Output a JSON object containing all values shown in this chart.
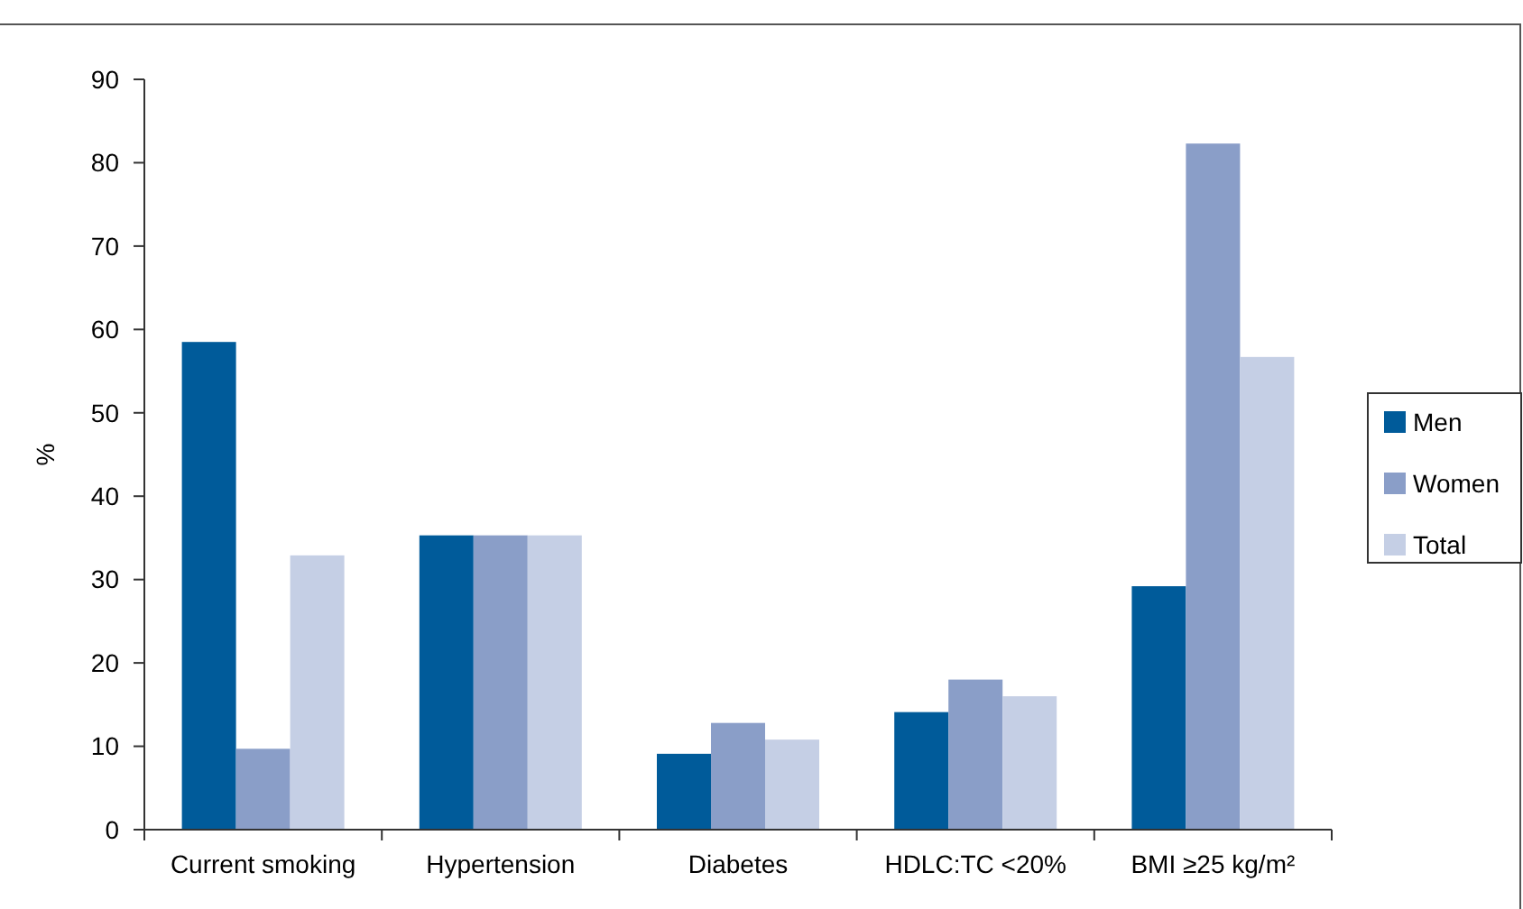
{
  "chart_data": {
    "type": "bar",
    "ylabel": "%",
    "categories": [
      "Current smoking",
      "Hypertension",
      "Diabetes",
      "HDLC:TC <20%",
      "BMI ≥25 kg/m²"
    ],
    "series": [
      {
        "name": "Men",
        "color": "#005b9a",
        "values": [
          58.5,
          35.3,
          9.1,
          14.1,
          29.2
        ]
      },
      {
        "name": "Women",
        "color": "#8a9ec8",
        "values": [
          9.7,
          35.3,
          12.8,
          18.0,
          82.3
        ]
      },
      {
        "name": "Total",
        "color": "#c5cfe5",
        "values": [
          32.9,
          35.3,
          10.8,
          16.0,
          56.7
        ]
      }
    ],
    "ylim": [
      0,
      90
    ],
    "yticks": [
      0,
      10,
      20,
      30,
      40,
      50,
      60,
      70,
      80,
      90
    ],
    "grid": false,
    "legend": "right"
  }
}
